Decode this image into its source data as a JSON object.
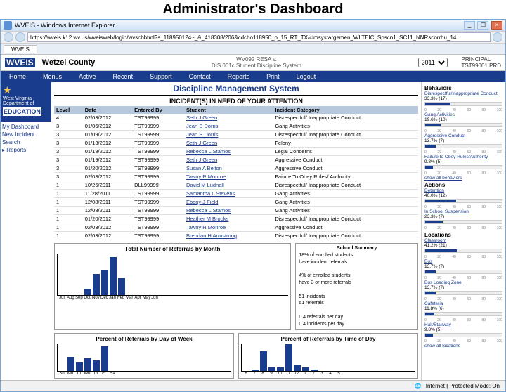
{
  "slide": {
    "title": "Administrator's Dashboard"
  },
  "browser": {
    "window_title": "WVEIS - Windows Internet Explorer",
    "url": "https://wveis.k12.wv.us/wveisweb/login/wvscbhtml?s_118950124~_&_418308/206&cdcho118950_o_15_RT_TX/clmsystargemen_WLTEIC_Spscn1_SC11_NNRscorrhu_14",
    "tab": "WVEIS",
    "status": "Internet | Protected Mode: On"
  },
  "app": {
    "logo_text": "WVEIS",
    "logo_sub": "on the Web",
    "county": "Wetzel County",
    "version_line1": "WV092 RESA v.",
    "version_line2": "DIS.001c Student Discipline System",
    "year_selected": "2011",
    "role": "PRINCIPAL",
    "user": "TST99001.PRD"
  },
  "menu": {
    "items": [
      "Home",
      "Menus",
      "Active",
      "Recent",
      "Support",
      "Contact",
      "Reports",
      "Print",
      "Logout"
    ]
  },
  "sidebar_logo": {
    "line1": "West Virginia",
    "line2": "Department of",
    "line3": "EDUCATION"
  },
  "leftnav": {
    "items": [
      "My Dashboard",
      "New Incident",
      "Search",
      "Reports"
    ]
  },
  "dms": {
    "title": "Discipline Management System",
    "section": "INCIDENT(S) IN NEED OF YOUR ATTENTION"
  },
  "table": {
    "columns": [
      "Level",
      "Date",
      "Entered By",
      "Student",
      "Incident Category"
    ],
    "rows": [
      [
        "4",
        "02/03/2012",
        "TST99999",
        "Seth J Green",
        "Disrespectful/ Inappropriate Conduct"
      ],
      [
        "3",
        "01/06/2012",
        "TST99999",
        "Jean S Dorris",
        "Gang Activities"
      ],
      [
        "3",
        "01/09/2012",
        "TST99999",
        "Jean S Dorris",
        "Disrespectful/ Inappropriate Conduct"
      ],
      [
        "3",
        "01/13/2012",
        "TST99999",
        "Seth J Green",
        "Felony"
      ],
      [
        "3",
        "01/18/2012",
        "TST99999",
        "Rebecca L Stamos",
        "Legal Concerns"
      ],
      [
        "3",
        "01/19/2012",
        "TST99999",
        "Seth J Green",
        "Aggressive Conduct"
      ],
      [
        "3",
        "01/20/2012",
        "TST99999",
        "Susan A Belton",
        "Aggressive Conduct"
      ],
      [
        "3",
        "02/03/2012",
        "TST99999",
        "Tawny R Monroe",
        "Failure To Obey Rules/ Authority"
      ],
      [
        "1",
        "10/26/2011",
        "DLL99999",
        "David M Ludnall",
        "Disrespectful/ Inappropriate Conduct"
      ],
      [
        "1",
        "11/28/2011",
        "TST99999",
        "Samantha L Stevens",
        "Gang Activities"
      ],
      [
        "1",
        "12/08/2011",
        "TST99999",
        "Ebony J Field",
        "Gang Activities"
      ],
      [
        "1",
        "12/08/2011",
        "TST99999",
        "Rebecca L Stamos",
        "Gang Activities"
      ],
      [
        "1",
        "01/20/2012",
        "TST99999",
        "Heather M Brooks",
        "Disrespectful/ Inappropriate Conduct"
      ],
      [
        "1",
        "02/03/2012",
        "TST99999",
        "Tawny R Monroe",
        "Aggressive Conduct"
      ],
      [
        "1",
        "02/03/2012",
        "TST99999",
        "Brendan H Armstrong",
        "Disrespectful/ Inappropriate Conduct"
      ]
    ]
  },
  "charts": {
    "monthly": {
      "title": "Total Number of Referrals by Month",
      "labels": [
        "Jul",
        "Aug",
        "Sep",
        "Oct",
        "Nov",
        "Dec",
        "Jan",
        "Feb",
        "Mar",
        "Apr",
        "May",
        "Jun"
      ],
      "values": [
        0,
        0,
        0,
        3,
        10,
        12,
        18,
        8,
        0,
        0,
        0,
        0
      ],
      "ymax": 20,
      "bar_color": "#1a3c8c"
    },
    "dow": {
      "title": "Percent of Referrals by Day of Week",
      "labels": [
        "Su",
        "Mo",
        "Tu",
        "We",
        "Th",
        "Fr",
        "Sa"
      ],
      "values": [
        0,
        20,
        12,
        18,
        15,
        35,
        0
      ],
      "ymax": 40,
      "bar_color": "#1a3c8c"
    },
    "tod": {
      "title": "Percent of Referrals by Time of Day",
      "labels": [
        "6",
        "7",
        "8",
        "9",
        "10",
        "11",
        "12",
        "1",
        "2",
        "3",
        "4",
        "5"
      ],
      "values": [
        0,
        2,
        28,
        5,
        5,
        38,
        8,
        5,
        2,
        0,
        0,
        0
      ],
      "ymax": 40,
      "bar_color": "#1a3c8c"
    }
  },
  "summary": {
    "title": "School Summary",
    "line1a": "18% of enrolled students",
    "line1b": "have incident referrals",
    "line2a": "4% of enrolled students",
    "line2b": "have 3 or more referrals",
    "line3a": "51 incidents",
    "line3b": "51 referrals",
    "line4a": "0.4 referrals per day",
    "line4b": "0.4 incidents per day"
  },
  "right": {
    "groups": [
      {
        "title": "Behaviors",
        "items": [
          {
            "label": "Disrespectful/Inappropriate Conduct",
            "pct": "33.3% (17)",
            "fill": 33
          },
          {
            "label": "Gang Activities",
            "pct": "19.6% (10)",
            "fill": 20
          },
          {
            "label": "Aggressive Conduct",
            "pct": "13.7% (7)",
            "fill": 14
          },
          {
            "label": "Failure to Obey Rules/Authority",
            "pct": "9.8% (5)",
            "fill": 10
          }
        ],
        "more": "show all behaviors"
      },
      {
        "title": "Actions",
        "items": [
          {
            "label": "Detention",
            "pct": "40.0% (12)",
            "fill": 40
          },
          {
            "label": "In School Suspension",
            "pct": "23.3% (7)",
            "fill": 23
          }
        ]
      },
      {
        "title": "Locations",
        "items": [
          {
            "label": "Classroom",
            "pct": "41.2% (21)",
            "fill": 41
          },
          {
            "label": "Bus",
            "pct": "13.7% (7)",
            "fill": 14
          },
          {
            "label": "Bus Loading Zone",
            "pct": "13.7% (7)",
            "fill": 14
          },
          {
            "label": "Cafeteria",
            "pct": "11.8% (6)",
            "fill": 12
          },
          {
            "label": "Hall/Stairway",
            "pct": "9.8% (5)",
            "fill": 10
          }
        ],
        "more": "show all locations"
      }
    ],
    "ruler": [
      "0",
      "20",
      "40",
      "60",
      "80",
      "100"
    ]
  }
}
